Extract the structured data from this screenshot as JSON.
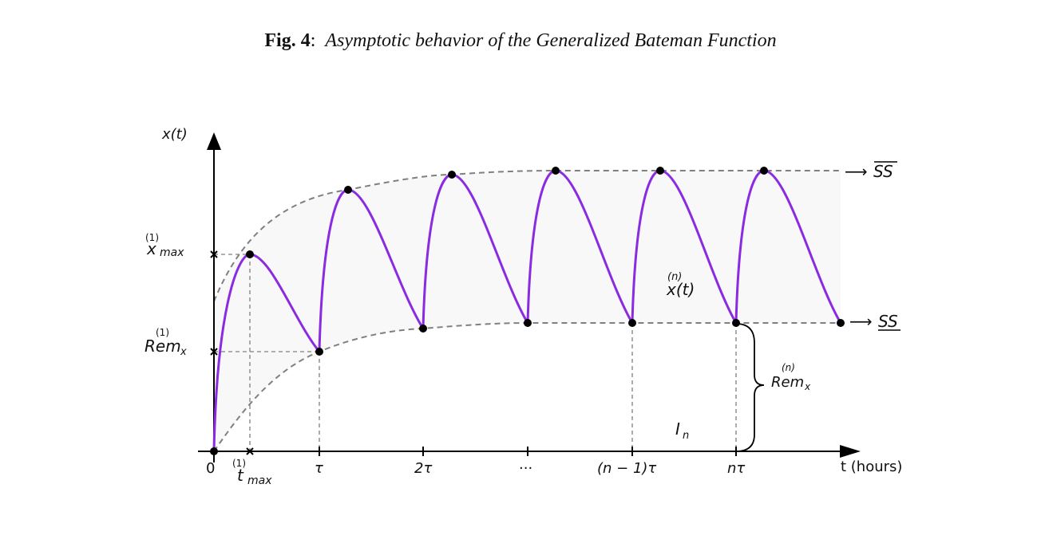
{
  "title": {
    "prefix": "Fig. 4",
    "colon": ":",
    "text": "Asymptotic behavior of the Generalized Bateman Function"
  },
  "axes": {
    "ylabel": "x(t)",
    "xlabel": "t (hours)",
    "x_ticks": [
      "0",
      "τ",
      "2τ",
      "···",
      "(n − 1)τ",
      "nτ"
    ],
    "t_max": {
      "sup": "(1)",
      "base": "t",
      "sub": "max"
    },
    "x_max": {
      "sup": "(1)",
      "base": "x",
      "sub": "max"
    },
    "rem_1": {
      "sup": "(1)",
      "base": "Rem",
      "sub": "x"
    }
  },
  "annotations": {
    "upper_ss": "SS",
    "lower_ss": "SS",
    "arrow": "⟶",
    "xn": {
      "sup": "(n)",
      "base": "x(t)"
    },
    "rem_n": {
      "sup": "(n)",
      "base": "Rem",
      "sub": "x"
    },
    "interval": {
      "base": "I",
      "sub": "n"
    }
  },
  "colors": {
    "curve": "#8a2be2",
    "envelope": "#808080",
    "shade": "#f8f8f8",
    "axis": "#000000"
  }
}
